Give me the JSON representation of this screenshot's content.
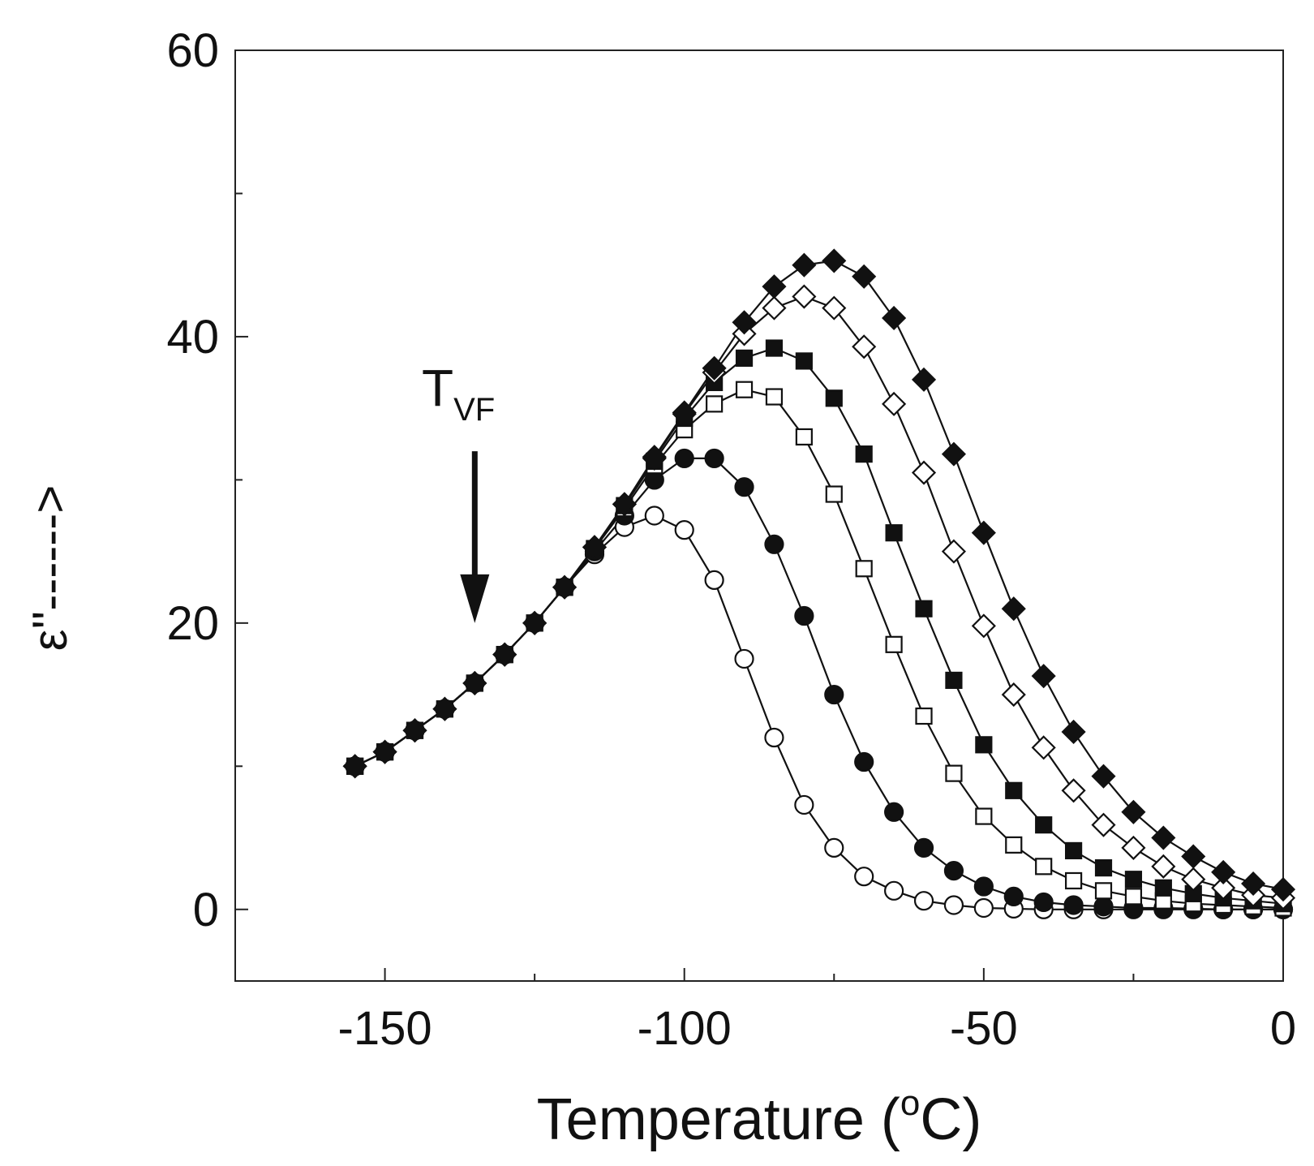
{
  "chart_data": {
    "type": "scatter",
    "title": "",
    "xlabel": "Temperature (",
    "xlabel_superscript": "o",
    "xlabel_suffix": "C)",
    "ylabel": "ε''------>",
    "xlim": [
      -175,
      0
    ],
    "ylim": [
      -5,
      60
    ],
    "x_ticks": [
      -150,
      -100,
      -50,
      0
    ],
    "x_tick_labels": [
      "-150",
      "-100",
      "-50",
      "0"
    ],
    "y_ticks": [
      0,
      20,
      40,
      60
    ],
    "y_tick_labels": [
      "0",
      "20",
      "40",
      "60"
    ],
    "annotation": {
      "text": "T",
      "subscript": "VF",
      "arrow_x": -135,
      "arrow_from_y": 32,
      "arrow_to_y": 20
    },
    "series": [
      {
        "name": "open circles",
        "marker": "circle",
        "filled": false,
        "points": [
          [
            -155,
            10
          ],
          [
            -150,
            11
          ],
          [
            -145,
            12.5
          ],
          [
            -140,
            14
          ],
          [
            -135,
            15.8
          ],
          [
            -130,
            17.8
          ],
          [
            -125,
            20
          ],
          [
            -120,
            22.5
          ],
          [
            -115,
            24.8
          ],
          [
            -110,
            26.7
          ],
          [
            -105,
            27.5
          ],
          [
            -100,
            26.5
          ],
          [
            -95,
            23
          ],
          [
            -90,
            17.5
          ],
          [
            -85,
            12
          ],
          [
            -80,
            7.3
          ],
          [
            -75,
            4.3
          ],
          [
            -70,
            2.3
          ],
          [
            -65,
            1.3
          ],
          [
            -60,
            0.6
          ],
          [
            -55,
            0.3
          ],
          [
            -50,
            0.1
          ],
          [
            -45,
            0.05
          ],
          [
            -40,
            0
          ],
          [
            -35,
            0
          ],
          [
            -30,
            0
          ],
          [
            -25,
            0
          ],
          [
            -20,
            0
          ],
          [
            -15,
            0
          ],
          [
            -10,
            0
          ],
          [
            -5,
            0
          ],
          [
            0,
            0
          ]
        ]
      },
      {
        "name": "filled circles",
        "marker": "circle",
        "filled": true,
        "points": [
          [
            -155,
            10
          ],
          [
            -150,
            11
          ],
          [
            -145,
            12.5
          ],
          [
            -140,
            14
          ],
          [
            -135,
            15.8
          ],
          [
            -130,
            17.8
          ],
          [
            -125,
            20
          ],
          [
            -120,
            22.5
          ],
          [
            -115,
            25
          ],
          [
            -110,
            27.5
          ],
          [
            -105,
            30
          ],
          [
            -100,
            31.5
          ],
          [
            -95,
            31.5
          ],
          [
            -90,
            29.5
          ],
          [
            -85,
            25.5
          ],
          [
            -80,
            20.5
          ],
          [
            -75,
            15
          ],
          [
            -70,
            10.3
          ],
          [
            -65,
            6.8
          ],
          [
            -60,
            4.3
          ],
          [
            -55,
            2.7
          ],
          [
            -50,
            1.6
          ],
          [
            -45,
            0.9
          ],
          [
            -40,
            0.5
          ],
          [
            -35,
            0.3
          ],
          [
            -30,
            0.2
          ],
          [
            -25,
            0.1
          ],
          [
            -20,
            0.1
          ],
          [
            -15,
            0.05
          ],
          [
            -10,
            0
          ],
          [
            -5,
            0
          ],
          [
            0,
            0
          ]
        ]
      },
      {
        "name": "open squares",
        "marker": "square",
        "filled": false,
        "points": [
          [
            -155,
            10
          ],
          [
            -150,
            11
          ],
          [
            -145,
            12.5
          ],
          [
            -140,
            14
          ],
          [
            -135,
            15.8
          ],
          [
            -130,
            17.8
          ],
          [
            -125,
            20
          ],
          [
            -120,
            22.5
          ],
          [
            -115,
            25.2
          ],
          [
            -110,
            28
          ],
          [
            -105,
            31
          ],
          [
            -100,
            33.5
          ],
          [
            -95,
            35.3
          ],
          [
            -90,
            36.3
          ],
          [
            -85,
            35.8
          ],
          [
            -80,
            33
          ],
          [
            -75,
            29
          ],
          [
            -70,
            23.8
          ],
          [
            -65,
            18.5
          ],
          [
            -60,
            13.5
          ],
          [
            -55,
            9.5
          ],
          [
            -50,
            6.5
          ],
          [
            -45,
            4.5
          ],
          [
            -40,
            3
          ],
          [
            -35,
            2
          ],
          [
            -30,
            1.3
          ],
          [
            -25,
            0.9
          ],
          [
            -20,
            0.6
          ],
          [
            -15,
            0.4
          ],
          [
            -10,
            0.3
          ],
          [
            -5,
            0.2
          ],
          [
            0,
            0.1
          ]
        ]
      },
      {
        "name": "filled squares",
        "marker": "square",
        "filled": true,
        "points": [
          [
            -155,
            10
          ],
          [
            -150,
            11
          ],
          [
            -145,
            12.5
          ],
          [
            -140,
            14
          ],
          [
            -135,
            15.8
          ],
          [
            -130,
            17.8
          ],
          [
            -125,
            20
          ],
          [
            -120,
            22.5
          ],
          [
            -115,
            25.2
          ],
          [
            -110,
            28.2
          ],
          [
            -105,
            31.3
          ],
          [
            -100,
            34.3
          ],
          [
            -95,
            36.8
          ],
          [
            -90,
            38.5
          ],
          [
            -85,
            39.2
          ],
          [
            -80,
            38.3
          ],
          [
            -75,
            35.7
          ],
          [
            -70,
            31.8
          ],
          [
            -65,
            26.3
          ],
          [
            -60,
            21
          ],
          [
            -55,
            16
          ],
          [
            -50,
            11.5
          ],
          [
            -45,
            8.3
          ],
          [
            -40,
            5.9
          ],
          [
            -35,
            4.1
          ],
          [
            -30,
            2.9
          ],
          [
            -25,
            2.1
          ],
          [
            -20,
            1.5
          ],
          [
            -15,
            1.1
          ],
          [
            -10,
            0.8
          ],
          [
            -5,
            0.6
          ],
          [
            0,
            0.4
          ]
        ]
      },
      {
        "name": "open diamonds",
        "marker": "diamond",
        "filled": false,
        "points": [
          [
            -155,
            10
          ],
          [
            -150,
            11
          ],
          [
            -145,
            12.5
          ],
          [
            -140,
            14
          ],
          [
            -135,
            15.8
          ],
          [
            -130,
            17.8
          ],
          [
            -125,
            20
          ],
          [
            -120,
            22.5
          ],
          [
            -115,
            25.3
          ],
          [
            -110,
            28.3
          ],
          [
            -105,
            31.5
          ],
          [
            -100,
            34.6
          ],
          [
            -95,
            37.5
          ],
          [
            -90,
            40.2
          ],
          [
            -85,
            42
          ],
          [
            -80,
            42.8
          ],
          [
            -75,
            42
          ],
          [
            -70,
            39.3
          ],
          [
            -65,
            35.3
          ],
          [
            -60,
            30.5
          ],
          [
            -55,
            25
          ],
          [
            -50,
            19.8
          ],
          [
            -45,
            15
          ],
          [
            -40,
            11.3
          ],
          [
            -35,
            8.3
          ],
          [
            -30,
            5.9
          ],
          [
            -25,
            4.3
          ],
          [
            -20,
            3
          ],
          [
            -15,
            2.1
          ],
          [
            -10,
            1.5
          ],
          [
            -5,
            1
          ],
          [
            0,
            0.8
          ]
        ]
      },
      {
        "name": "filled diamonds",
        "marker": "diamond",
        "filled": true,
        "points": [
          [
            -155,
            10
          ],
          [
            -150,
            11
          ],
          [
            -145,
            12.5
          ],
          [
            -140,
            14
          ],
          [
            -135,
            15.8
          ],
          [
            -130,
            17.8
          ],
          [
            -125,
            20
          ],
          [
            -120,
            22.5
          ],
          [
            -115,
            25.3
          ],
          [
            -110,
            28.3
          ],
          [
            -105,
            31.6
          ],
          [
            -100,
            34.7
          ],
          [
            -95,
            37.8
          ],
          [
            -90,
            41
          ],
          [
            -85,
            43.5
          ],
          [
            -80,
            45
          ],
          [
            -75,
            45.3
          ],
          [
            -70,
            44.2
          ],
          [
            -65,
            41.3
          ],
          [
            -60,
            37
          ],
          [
            -55,
            31.8
          ],
          [
            -50,
            26.3
          ],
          [
            -45,
            21
          ],
          [
            -40,
            16.3
          ],
          [
            -35,
            12.4
          ],
          [
            -30,
            9.3
          ],
          [
            -25,
            6.8
          ],
          [
            -20,
            5
          ],
          [
            -15,
            3.7
          ],
          [
            -10,
            2.6
          ],
          [
            -5,
            1.8
          ],
          [
            0,
            1.4
          ]
        ]
      }
    ]
  }
}
